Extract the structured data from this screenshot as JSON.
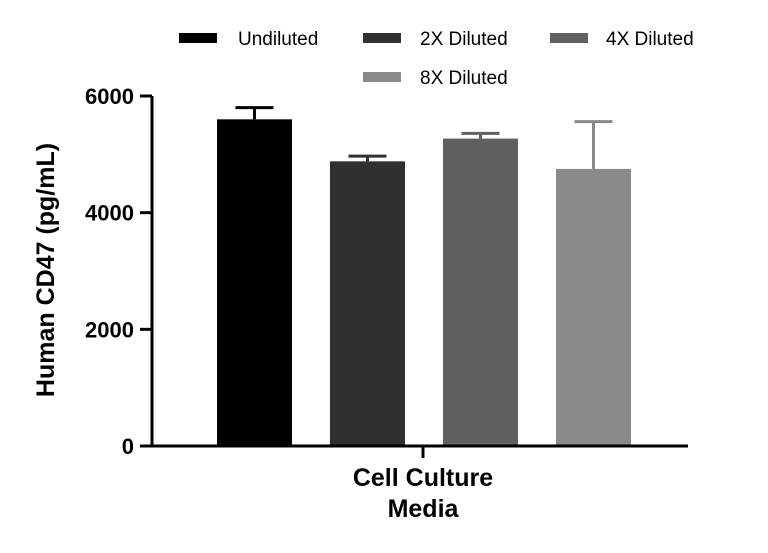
{
  "chart_data": {
    "type": "bar",
    "title": "",
    "xlabel_lines": [
      "Cell Culture",
      "Media"
    ],
    "ylabel": "Human CD47 (pg/mL)",
    "ylim": [
      0,
      6000
    ],
    "yticks": [
      "0",
      "2000",
      "4000",
      "6000"
    ],
    "grid": false,
    "legend_position": "top",
    "series": [
      {
        "name": "Undiluted",
        "value": 5600,
        "error": 200,
        "color": "#000000"
      },
      {
        "name": "2X Diluted",
        "value": 4880,
        "error": 90,
        "color": "#303030"
      },
      {
        "name": "4X Diluted",
        "value": 5270,
        "error": 90,
        "color": "#606060"
      },
      {
        "name": "8X Diluted",
        "value": 4750,
        "error": 810,
        "color": "#8a8a8a"
      }
    ]
  }
}
